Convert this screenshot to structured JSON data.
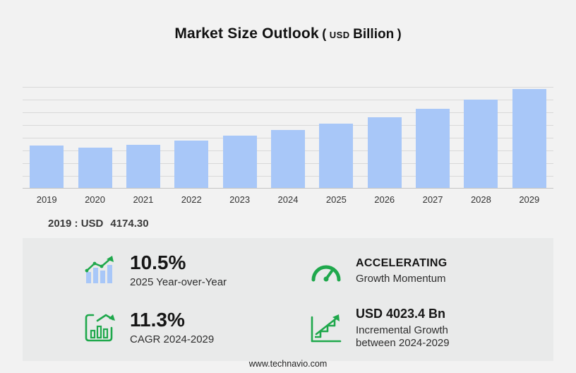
{
  "title": {
    "main": "Market Size Outlook",
    "paren_open": "(",
    "currency": "USD",
    "unit": "Billion",
    "paren_close": ")"
  },
  "chart_data": {
    "type": "bar",
    "title": "Market Size Outlook (USD Billion)",
    "categories": [
      "2019",
      "2020",
      "2021",
      "2022",
      "2023",
      "2024",
      "2025",
      "2026",
      "2027",
      "2028",
      "2029"
    ],
    "values": [
      4174.3,
      3966.0,
      4244.0,
      4661.0,
      5148.0,
      5683.4,
      6280.2,
      6940.0,
      7780.0,
      8630.0,
      9706.8
    ],
    "xlabel": "",
    "ylabel": "USD Billion",
    "ylim": [
      0,
      9900
    ],
    "grid": true,
    "legend": "none"
  },
  "annotation": {
    "label": "2019 : USD",
    "value": "4174.30"
  },
  "stats": [
    {
      "icon": "bar-chart-growth-icon",
      "value": "10.5%",
      "label": "2025 Year-over-Year"
    },
    {
      "icon": "speedometer-icon",
      "value": "ACCELERATING",
      "label": "Growth Momentum"
    },
    {
      "icon": "cagr-chart-icon",
      "value": "11.3%",
      "label": "CAGR 2024-2029"
    },
    {
      "icon": "incremental-growth-icon",
      "value": "USD 4023.4 Bn",
      "label": "Incremental Growth between 2024-2029"
    }
  ],
  "footer": {
    "url": "www.technavio.com"
  },
  "colors": {
    "bar": "#a8c7f8",
    "accent_green": "#1fa84c",
    "panel": "#e9eaea",
    "background": "#f2f2f2"
  }
}
